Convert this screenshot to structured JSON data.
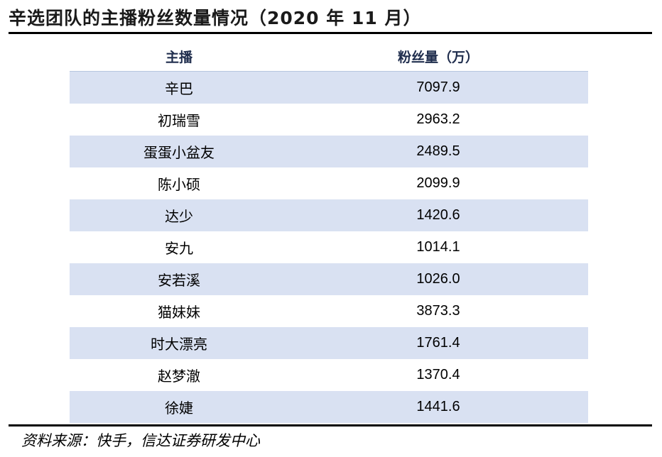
{
  "title": "辛选团队的主播粉丝数量情况（2020 年 11 月）",
  "table": {
    "headers": [
      "主播",
      "粉丝量（万）"
    ],
    "rows": [
      {
        "name": "辛巴",
        "fans": "7097.9"
      },
      {
        "name": "初瑞雪",
        "fans": "2963.2"
      },
      {
        "name": "蛋蛋小盆友",
        "fans": "2489.5"
      },
      {
        "name": "陈小硕",
        "fans": "2099.9"
      },
      {
        "name": "达少",
        "fans": "1420.6"
      },
      {
        "name": "安九",
        "fans": "1014.1"
      },
      {
        "name": "安若溪",
        "fans": "1026.0"
      },
      {
        "name": "猫妹妹",
        "fans": "3873.3"
      },
      {
        "name": "时大漂亮",
        "fans": "1761.4"
      },
      {
        "name": "赵梦澈",
        "fans": "1370.4"
      },
      {
        "name": "徐婕",
        "fans": "1441.6"
      }
    ]
  },
  "source": "资料来源：快手，信达证券研发中心",
  "colors": {
    "row_shade": "#d9e1f2",
    "header_text": "#1f2d4d"
  }
}
